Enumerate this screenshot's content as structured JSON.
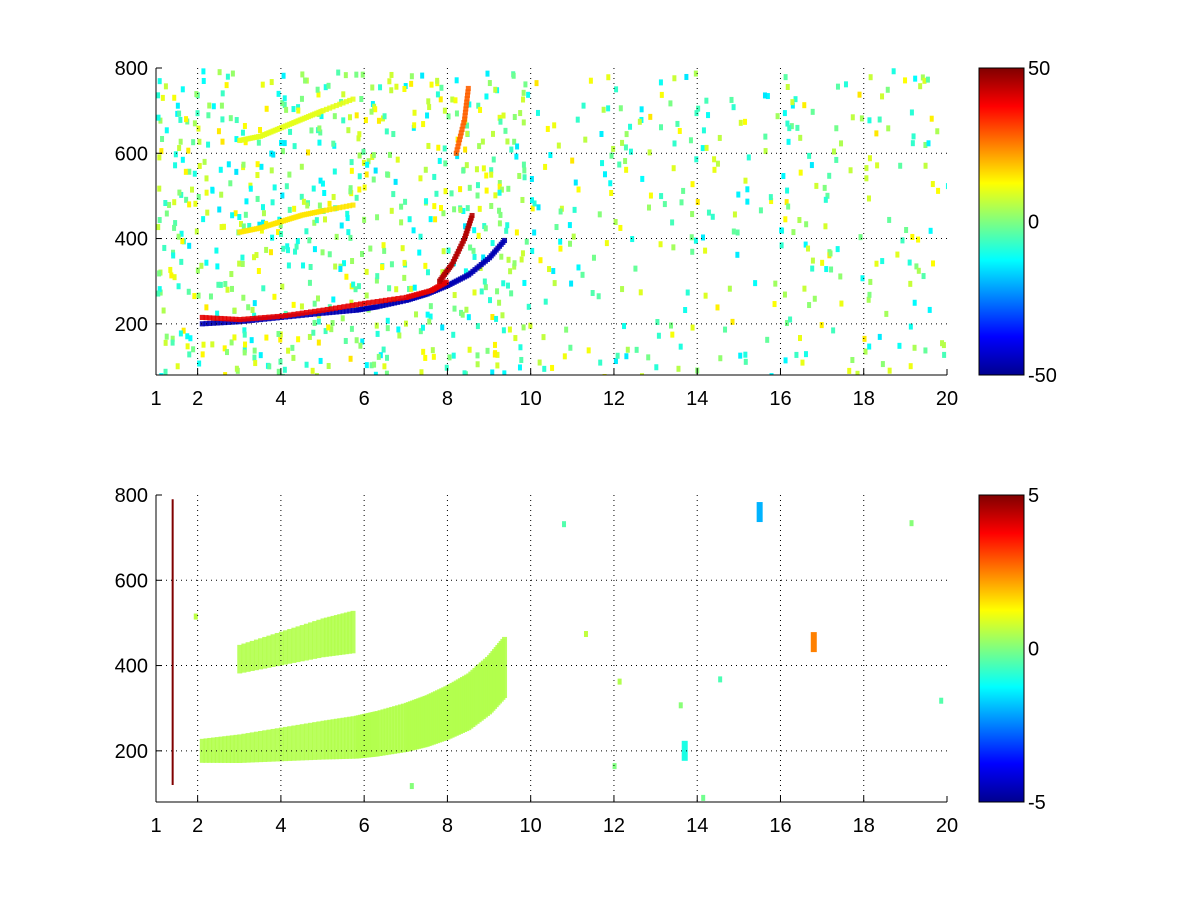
{
  "chart_data": [
    {
      "type": "heatmap",
      "title": "",
      "xlabel": "",
      "ylabel": "",
      "xlim": [
        1,
        20
      ],
      "ylim": [
        80,
        800
      ],
      "xticks": [
        "1",
        "2",
        "4",
        "6",
        "8",
        "10",
        "12",
        "14",
        "16",
        "18",
        "20"
      ],
      "xtick_values": [
        1,
        2,
        4,
        6,
        8,
        10,
        12,
        14,
        16,
        18,
        20
      ],
      "yticks": [
        "200",
        "400",
        "600",
        "800"
      ],
      "ytick_values": [
        200,
        400,
        600,
        800
      ],
      "grid": "dotted",
      "colormap": "jet",
      "clim": [
        -50,
        50
      ],
      "colorbar_ticks": [
        "50",
        "0",
        "-50"
      ],
      "colorbar_tick_values": [
        50,
        0,
        -50
      ],
      "features": [
        {
          "kind": "curve",
          "x": [
            2.1,
            3,
            4,
            5,
            5.8,
            6.3,
            7,
            7.5,
            8,
            8.5,
            9,
            9.4
          ],
          "y": [
            200,
            205,
            215,
            225,
            232,
            240,
            255,
            270,
            290,
            315,
            355,
            400
          ],
          "value": -45
        },
        {
          "kind": "curve",
          "x": [
            2.1,
            3,
            4,
            5,
            6,
            7,
            7.6,
            8
          ],
          "y": [
            215,
            210,
            218,
            232,
            248,
            262,
            278,
            300
          ],
          "value": 40
        },
        {
          "kind": "curve",
          "x": [
            7.8,
            8.1,
            8.4,
            8.6
          ],
          "y": [
            300,
            340,
            400,
            460
          ],
          "value": 45
        },
        {
          "kind": "curve",
          "x": [
            3,
            3.5,
            4,
            4.5,
            5,
            5.8
          ],
          "y": [
            415,
            425,
            440,
            455,
            465,
            480
          ],
          "value": 15
        },
        {
          "kind": "curve",
          "x": [
            3,
            3.5,
            4,
            4.5,
            5,
            5.8
          ],
          "y": [
            630,
            640,
            660,
            680,
            700,
            730
          ],
          "value": 10
        },
        {
          "kind": "curve",
          "x": [
            8.2,
            8.4,
            8.5
          ],
          "y": [
            600,
            680,
            760
          ],
          "value": 28
        }
      ]
    },
    {
      "type": "heatmap",
      "title": "",
      "xlabel": "",
      "ylabel": "",
      "xlim": [
        1,
        20
      ],
      "ylim": [
        80,
        800
      ],
      "xticks": [
        "1",
        "2",
        "4",
        "6",
        "8",
        "10",
        "12",
        "14",
        "16",
        "18",
        "20"
      ],
      "xtick_values": [
        1,
        2,
        4,
        6,
        8,
        10,
        12,
        14,
        16,
        18,
        20
      ],
      "yticks": [
        "200",
        "400",
        "600",
        "800"
      ],
      "ytick_values": [
        200,
        400,
        600,
        800
      ],
      "grid": "dotted",
      "colormap": "jet",
      "clim": [
        -5,
        5
      ],
      "colorbar_ticks": [
        "5",
        "0",
        "-5"
      ],
      "colorbar_tick_values": [
        5,
        0,
        -5
      ],
      "features": [
        {
          "kind": "band",
          "x": [
            2.1,
            3,
            4,
            5,
            5.8,
            6.3,
            7,
            7.5,
            8,
            8.5,
            9,
            9.4
          ],
          "y": [
            200,
            205,
            215,
            225,
            232,
            240,
            255,
            270,
            290,
            315,
            355,
            400
          ],
          "value": 0.5
        },
        {
          "kind": "band",
          "x": [
            3,
            4,
            5,
            5.8
          ],
          "y": [
            415,
            440,
            465,
            480
          ],
          "value": 0.5
        },
        {
          "kind": "line",
          "x": [
            1.4,
            1.4
          ],
          "y": [
            120,
            790
          ],
          "value": 5
        },
        {
          "kind": "spot",
          "x": [
            13.7
          ],
          "y": [
            200
          ],
          "value": -1
        },
        {
          "kind": "spot",
          "x": [
            16.8
          ],
          "y": [
            455
          ],
          "value": 2.5
        },
        {
          "kind": "spot",
          "x": [
            15.5
          ],
          "y": [
            760
          ],
          "value": -2
        }
      ]
    }
  ]
}
